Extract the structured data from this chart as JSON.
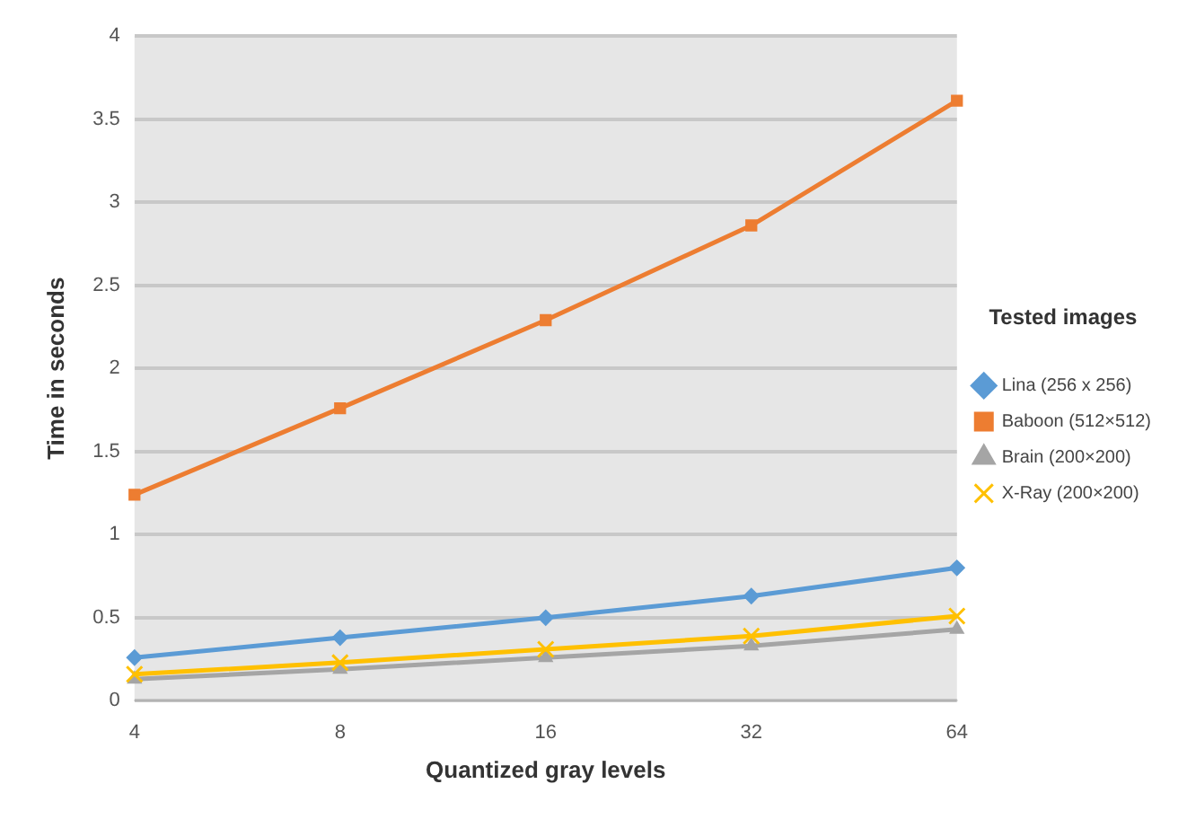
{
  "chart_data": {
    "type": "line",
    "xlabel": "Quantized gray levels",
    "ylabel": "Time in seconds",
    "legend_title": "Tested images",
    "categories": [
      "4",
      "8",
      "16",
      "32",
      "64"
    ],
    "series": [
      {
        "name": "Lina (256 x 256)",
        "color": "#5b9bd5",
        "marker": "diamond",
        "values": [
          0.26,
          0.38,
          0.5,
          0.63,
          0.8
        ]
      },
      {
        "name": "Baboon (512×512)",
        "color": "#ed7d31",
        "marker": "square",
        "values": [
          1.24,
          1.76,
          2.29,
          2.86,
          3.61
        ]
      },
      {
        "name": "Brain (200×200)",
        "color": "#a5a5a5",
        "marker": "triangle",
        "values": [
          0.13,
          0.19,
          0.26,
          0.33,
          0.43
        ]
      },
      {
        "name": "X-Ray (200×200)",
        "color": "#ffc000",
        "marker": "cross",
        "values": [
          0.16,
          0.23,
          0.31,
          0.39,
          0.51
        ]
      }
    ],
    "ylim": [
      0,
      4
    ],
    "yticks": [
      0,
      0.5,
      1,
      1.5,
      2,
      2.5,
      3,
      3.5,
      4
    ],
    "grid": "y",
    "legend": "right"
  }
}
